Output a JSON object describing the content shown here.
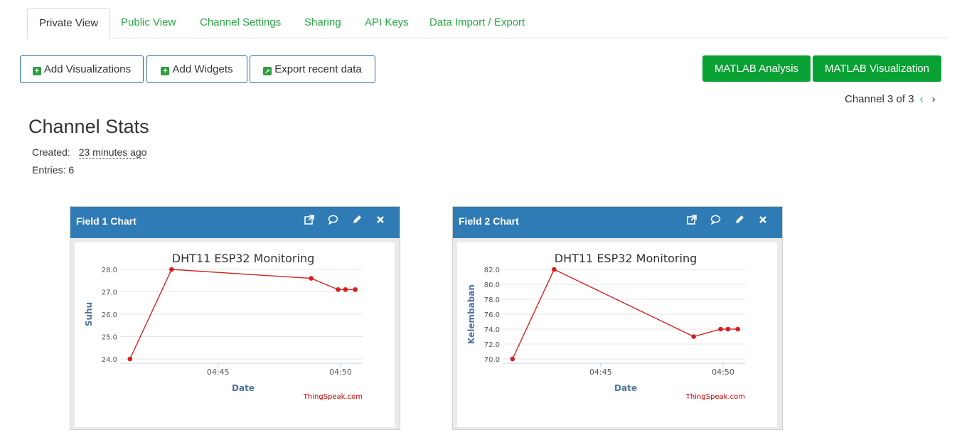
{
  "tabs": [
    "Private View",
    "Public View",
    "Channel Settings",
    "Sharing",
    "API Keys",
    "Data Import / Export"
  ],
  "toolbar": {
    "add_visualizations": "Add Visualizations",
    "add_widgets": "Add Widgets",
    "export_recent": "Export recent data",
    "matlab_analysis": "MATLAB Analysis",
    "matlab_visualization": "MATLAB Visualization"
  },
  "pager": {
    "text": "Channel 3 of 3",
    "prev": "‹",
    "next": "›"
  },
  "stats": {
    "title": "Channel Stats",
    "created_label": "Created:",
    "created_value": "23 minutes ago",
    "entries": "Entries: 6"
  },
  "charts": [
    {
      "panel_title": "Field 1 Chart",
      "chart_data": {
        "type": "line",
        "title": "DHT11 ESP32 Monitoring",
        "xlabel": "Date",
        "ylabel": "Suhu",
        "credit": "ThingSpeak.com",
        "x_ticks": [
          "04:45",
          "04:50"
        ],
        "y_ticks": [
          "24.0",
          "25.0",
          "26.0",
          "27.0",
          "28.0"
        ],
        "ylim": [
          24,
          28
        ],
        "x_minutes": [
          41.4,
          43.1,
          48.8,
          49.9,
          50.2,
          50.6
        ],
        "values": [
          24.0,
          28.0,
          27.6,
          27.1,
          27.1,
          27.1
        ],
        "color": "#d62020"
      }
    },
    {
      "panel_title": "Field 2 Chart",
      "chart_data": {
        "type": "line",
        "title": "DHT11 ESP32 Monitoring",
        "xlabel": "Date",
        "ylabel": "Kelembaban",
        "credit": "ThingSpeak.com",
        "x_ticks": [
          "04:45",
          "04:50"
        ],
        "y_ticks": [
          "70.0",
          "72.0",
          "74.0",
          "76.0",
          "78.0",
          "80.0",
          "82.0"
        ],
        "ylim": [
          70,
          82
        ],
        "x_minutes": [
          41.4,
          43.1,
          48.8,
          49.9,
          50.2,
          50.6
        ],
        "values": [
          70,
          82,
          73,
          74,
          74,
          74
        ],
        "color": "#d62020"
      }
    }
  ],
  "colors": {
    "accent_green": "#09a034",
    "panel_blue": "#2f7bb5",
    "series_red": "#d62020"
  }
}
